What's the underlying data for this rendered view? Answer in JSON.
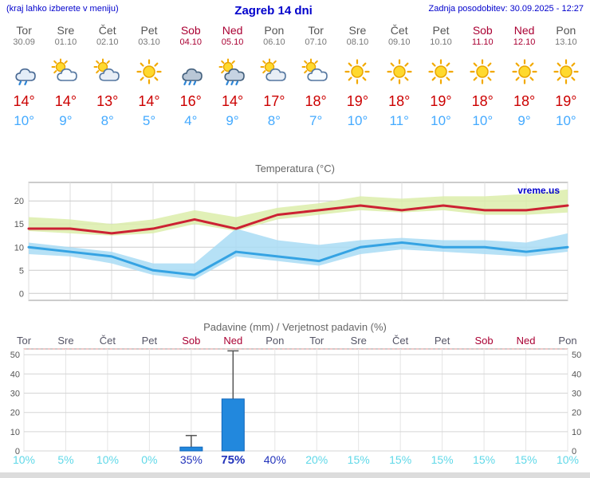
{
  "header": {
    "left_note": "(kraj lahko izberete v meniju)",
    "title": "Zagreb 14 dni",
    "updated": "Zadnja posodobitev: 30.09.2025 - 12:27"
  },
  "colors": {
    "accent_blue": "#0000cc",
    "weekday_text": "#555555",
    "weekend_text": "#aa0033",
    "temp_high": "#cc0000",
    "temp_low": "#44aaff",
    "prob_low": "#5fd8e8",
    "prob_high": "#2233bb",
    "bar_fill": "#2288dd"
  },
  "days": [
    {
      "name": "Tor",
      "date": "30.09",
      "weekend": false,
      "icon": "showers",
      "tmax": "14°",
      "tmin": "10°"
    },
    {
      "name": "Sre",
      "date": "01.10",
      "weekend": false,
      "icon": "partly-cloudy",
      "tmax": "14°",
      "tmin": "9°"
    },
    {
      "name": "Čet",
      "date": "02.10",
      "weekend": false,
      "icon": "mostly-cloudy",
      "tmax": "13°",
      "tmin": "8°"
    },
    {
      "name": "Pet",
      "date": "03.10",
      "weekend": false,
      "icon": "sunny",
      "tmax": "14°",
      "tmin": "5°"
    },
    {
      "name": "Sob",
      "date": "04.10",
      "weekend": true,
      "icon": "rain",
      "tmax": "16°",
      "tmin": "4°"
    },
    {
      "name": "Ned",
      "date": "05.10",
      "weekend": true,
      "icon": "rain-sun",
      "tmax": "14°",
      "tmin": "9°"
    },
    {
      "name": "Pon",
      "date": "06.10",
      "weekend": false,
      "icon": "mostly-cloudy",
      "tmax": "17°",
      "tmin": "8°"
    },
    {
      "name": "Tor",
      "date": "07.10",
      "weekend": false,
      "icon": "partly-cloudy",
      "tmax": "18°",
      "tmin": "7°"
    },
    {
      "name": "Sre",
      "date": "08.10",
      "weekend": false,
      "icon": "sunny",
      "tmax": "19°",
      "tmin": "10°"
    },
    {
      "name": "Čet",
      "date": "09.10",
      "weekend": false,
      "icon": "sunny",
      "tmax": "18°",
      "tmin": "11°"
    },
    {
      "name": "Pet",
      "date": "10.10",
      "weekend": false,
      "icon": "sunny",
      "tmax": "19°",
      "tmin": "10°"
    },
    {
      "name": "Sob",
      "date": "11.10",
      "weekend": true,
      "icon": "sunny",
      "tmax": "18°",
      "tmin": "10°"
    },
    {
      "name": "Ned",
      "date": "12.10",
      "weekend": true,
      "icon": "sunny",
      "tmax": "18°",
      "tmin": "9°"
    },
    {
      "name": "Pon",
      "date": "13.10",
      "weekend": false,
      "icon": "sunny",
      "tmax": "19°",
      "tmin": "10°"
    }
  ],
  "charts": {
    "temperature": {
      "title": "Temperatura (°C)"
    },
    "precipitation": {
      "title": "Padavine (mm) / Verjetnost padavin (%)"
    }
  },
  "chart_data": [
    {
      "type": "line",
      "title": "Temperatura (°C)",
      "watermark": "vreme.us",
      "x_labels": [
        "Tor",
        "Sre",
        "Čet",
        "Pet",
        "Sob",
        "Ned",
        "Pon",
        "Tor",
        "Sre",
        "Čet",
        "Pet",
        "Sob",
        "Ned",
        "Pon"
      ],
      "ylim": [
        -1.5,
        24
      ],
      "yticks": [
        0,
        5,
        10,
        15,
        20
      ],
      "grid": true,
      "series": [
        {
          "name": "max-temp",
          "color": "#cc2233",
          "values": [
            14,
            14,
            13,
            14,
            16,
            14,
            17,
            18,
            19,
            18,
            19,
            18,
            18,
            19
          ]
        },
        {
          "name": "min-temp",
          "color": "#35a3e3",
          "values": [
            10,
            9,
            8,
            5,
            4,
            9,
            8,
            7,
            10,
            11,
            10,
            10,
            9,
            10
          ]
        }
      ],
      "bands": [
        {
          "name": "max-range",
          "color": "#dcedaa",
          "upper": [
            16.5,
            16,
            15,
            16,
            18,
            16.5,
            18.5,
            19.5,
            21,
            20.5,
            21,
            21,
            21.5,
            22.5
          ],
          "lower": [
            13.5,
            13,
            12.5,
            13,
            15,
            13.5,
            16,
            17,
            18,
            17.5,
            18,
            17,
            17,
            17.5
          ]
        },
        {
          "name": "min-range",
          "color": "#a9dcf5",
          "upper": [
            11,
            10,
            9,
            6.5,
            6.5,
            14,
            11.5,
            10.5,
            11.5,
            12,
            11.5,
            11.5,
            11,
            13
          ],
          "lower": [
            8.5,
            8,
            6.5,
            4,
            3,
            8,
            7,
            6,
            8.5,
            9.5,
            9,
            8.5,
            8,
            9
          ]
        }
      ]
    },
    {
      "type": "bar",
      "title": "Padavine (mm) / Verjetnost padavin (%)",
      "categories": [
        "Tor",
        "Sre",
        "Čet",
        "Pet",
        "Sob",
        "Ned",
        "Pon",
        "Tor",
        "Sre",
        "Čet",
        "Pet",
        "Sob",
        "Ned",
        "Pon"
      ],
      "weekend_flags": [
        false,
        false,
        false,
        false,
        true,
        true,
        false,
        false,
        false,
        false,
        false,
        true,
        true,
        false
      ],
      "values_mm": [
        0,
        0,
        0,
        0,
        2,
        27,
        0,
        0,
        0,
        0,
        0,
        0,
        0,
        0
      ],
      "whisker_max_mm": [
        0,
        0,
        0,
        0,
        8,
        52,
        0,
        0,
        0,
        0,
        0,
        0,
        0,
        0
      ],
      "probability_pct": [
        10,
        5,
        10,
        0,
        35,
        75,
        40,
        20,
        15,
        15,
        15,
        15,
        15,
        10
      ],
      "ylim": [
        0,
        53
      ],
      "yticks": [
        0,
        10,
        20,
        30,
        40,
        50
      ],
      "bar_color": "#2288dd",
      "legend_position": "none"
    }
  ]
}
